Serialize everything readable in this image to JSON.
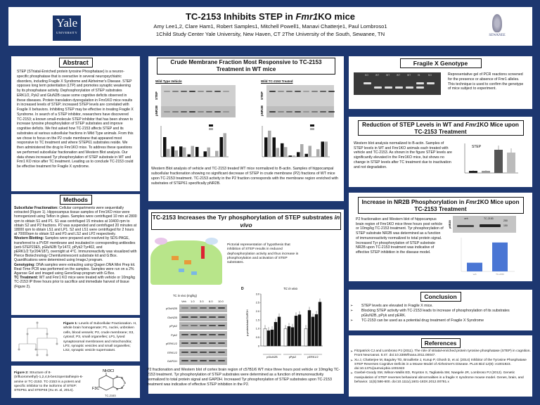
{
  "header": {
    "title_pre": "TC-2153 Inhibits STEP in ",
    "title_italic": "Fmr1",
    "title_post": "KO mice",
    "authors": "Amy Lee1,2, Clare Ham1, Robert Samples1, Mitchell Powell1, Manavi Chatterje1, Paul Lombroso1",
    "affiliations": "1Child Study Center Yale University, New Haven, CT  2The University of the South, Sewanee, TN",
    "logo_left": {
      "line1": "Yale",
      "line2": "UNIVERSITY"
    },
    "logo_right": {
      "text": "SEWANEE"
    }
  },
  "abstract": {
    "title": "Abstract",
    "body": "STEP (STriatal-Enriched protein tyrosine Phosphatase) is a neuron-specific phosphatase that is overactive in several neuropsychiatric disorders, including Fragile X Syndrome and Alzheimer's Disease. STEP opposes long term potentiation (LTP) and promotes synaptic weakening by its phosphatase activity. Dephosphorylation of STEP substrates ERK1/2, Pyk2 and GluN2B cause some cognitive deficits observed in these diseases. Protein translation dysregulation in Fmr1KO mice results in increased levels of STEP; increased STEP levels are correlated with Fragile X behaviors. Inhibiting STEP may be effective in treating Fragile X Syndrome. In search of a STEP inhibitor, researchers have discovered TC-2153; a known small-molecule STEP inhibitor that has been shown to increase tyrosine phosphorylation of STEP substrates and improve cognitive deficits. We first asked how TC-2153 affects STEP and its substrates at various subcellular fractions in Wild Type animals. From this we chose to focus on the P2 crude membrane that appeared most responsive to TC treatment and where STEP61 substrates reside. We then administered the drug to Fmr1KO mice. To address these questions we performed subcellular fractionation and Western Blot analysis. Our data shows increased Tyr phosphorylation of STEP substrate in WT and Fmr1 KO mice after TC treatment. Leading us to conclude TC-2153 could be  effective treatment for Fragile X syndrome."
  },
  "methods": {
    "title": "Methods",
    "items": [
      {
        "label": "Subcellular Fractionation:",
        "text": " Cellular compartments were sequentially extracted (Figure 1). Hippocampus tissue samples of Fmr1KO mice were homogenized using Teflon in glass. Samples were centrifuged 10 min at 2800 rpm to obtain S1 and P1. S1 was centrifuged 15 minutes at 10400 rpm to obtain S2 and P2 fractions. P2 was suspended and centrifuged 20 minutes at 18000 rpm to obtain LS1 and LP1. S2 and LS1 were centrifuged for 2 hours at 70000rpm to obtain S3 and P3 and LS2 and LP2 respectively."
      },
      {
        "label": "Western Blotting:",
        "text": " Samples were prepared and resolved by SDS-PAGE, transferred to a PVDF membrane and incubated in corresponding antibodies (anti-STEP23E5, pGluN2B:Tyr1472, pPyk2:Tyr402, and pERK1/2:Tyr204/187), overnight at 4°C. Immunoreactivity was visualized with Pierce Biotechnology Chemiluminescent substrate kit and G:Box. Quantifications were determined using ImageJ program."
      },
      {
        "label": "Genotyping:",
        "text": " DNA samples were extracting using Qiagen DNA Mini Prep kit. Real-Time PCR was performed on the samples. Samples were run on a 2% Agarose Gel and imaged using GeneSnap program with G:Box."
      },
      {
        "label": "TC Treatment:",
        "text": " WT and Fmr1 KO mice were treated with vehicle or 10mg/kg TC-2153 IP three hours prior to sacrifice and immediate harvest of tissue (Figure 2)."
      }
    ]
  },
  "figure1": {
    "label": "Figure 1:",
    "caption": " Levels of Subcellular Fractionation. H, whole brain homogenate; P1, nuclei, unbroken cells, blood vessels; P2, crude membrane; S3, cytosol; P3, small organelles; LP1, lysed synaptosomal membranes and mitochondria; LP2, synaptic vesicles and small organelles; LS2, synaptic vesicle supernatant."
  },
  "figure2": {
    "label": "Figure 2:",
    "caption": " Structure of 8-(trifluoromethyl)-1,2,4,5-benzopentathiepin-6-amine or TC-2153. TC-2153 is a potent and specific inhibitor to the isoforms of STEP: STEP61 and STEP46 (Xu et. al, 2014).",
    "structure_amine": "NH3Cl",
    "structure_cf3": "F3C",
    "structure_label": "TC-2153"
  },
  "crude": {
    "title": "Crude Membrane Fraction Most Responsive to TC-2153 Treatment in WT mice",
    "blot_left_title": "Wild Type Vehicle",
    "blot_right_title": "Wild TC-2153 Treated",
    "row_labels": [
      "STEP",
      "pNR2B"
    ],
    "chart_left": {
      "vehicle": [
        2.0,
        1.05,
        1.05,
        0.25,
        1.0,
        0.55,
        0.0,
        2.0
      ],
      "tc": [
        0.8,
        0.65,
        0.95,
        1.1,
        0.0,
        0.95,
        0.6,
        2.4
      ]
    },
    "chart_right": {
      "vehicle": [
        2.3,
        2.3,
        1.6,
        0.15,
        0.55,
        0.35,
        0.0,
        1.8
      ],
      "tc": [
        3.1,
        1.05,
        1.15,
        0.15,
        1.5,
        1.3,
        0.9,
        1.8
      ]
    },
    "caption": "Western Blot analysis of vehicle and TC-2153 treated WT mice normalized to B-actin. Samples of hippocampal subcellular fractionation showing no significant decrease of STEP in crude membrane (P2) fractions of WT mice upon TC-2153 treatment. TC-2153 activity in the P2 fraction corresponds with the membrane region enriched with substrates of STEP61 specifically pNR2B."
  },
  "tyr": {
    "title_pre": "TC-2153 Increases the Tyr phosphorylation of STEP substrates ",
    "title_italic": "in vivo",
    "pictorial_caption": "Pictorial representation of hypothesis that inhibition of STEP results in reduced dephosphorylation activity and thus increase in phosphorylation and activation of STEP substrates.",
    "blot_header": "TC in vivo (mg/kg)",
    "doses": [
      "Veh",
      "1.0",
      "3.0",
      "6.0",
      "10.0"
    ],
    "blot_rows": [
      "pGluN2B",
      "GluN2B",
      "pPyk2",
      "Pyk2",
      "pERK1/2",
      "ERK1/2",
      "GAPDH"
    ],
    "chart": {
      "panel": "D",
      "title": "TC in vivo",
      "ylabel": "p-protein/total/GAPDH",
      "yticks": [
        "0",
        "0.5",
        "1.0",
        "1.5",
        "2.0",
        "2.5",
        "3.0"
      ],
      "groups": [
        "pGluN2B",
        "pPyk2",
        "pERK1/2"
      ],
      "values": [
        [
          1.0,
          0.88,
          0.93,
          1.37,
          1.67
        ],
        [
          1.0,
          1.12,
          1.07,
          1.73,
          1.8
        ],
        [
          1.0,
          2.05,
          1.67,
          1.82,
          2.53
        ]
      ]
    },
    "caption": "P2 fractionation and Western blot of cortex brain region of c57B1/6 WT mice three hours post vehicle or 10mg/kg TC-2153 treatment. Tyr phosphorylation of STEP substrates  were determined as a function of immunoreactivity normalized to total protein signal and GAPDH. Increased Tyr phosphorylation of STEP substrates upon TC-2153 treatment was indicative of effective STEP inhibition in the P2."
  },
  "genotype": {
    "title": "Fragile X Genotype",
    "lanes": [
      "KO",
      "WT",
      "WT",
      "WT",
      "WT",
      "Ht",
      "KO"
    ],
    "caption": "Representative gel of PCR reactions screened for the presence or absence of Fmr1 alleles. This technique is used to confirm the genotype of mice subject to experiment."
  },
  "reduction": {
    "title_pre": "Reduction of STEP Levels in WT and ",
    "title_italic": "Fmr1",
    "title_post": "KO Mice upon TC-2153 Treatment",
    "body": "Western blot analysis normalized to B-actin. Samples of STEP levels in WT and Fmr1KO animals each treated with vehicle and TC-2153. As shown in the figure STEP levels are significantly elevated in the Fmr1KO mice, but shows no change in STEP levels after TC treatment due to inactivation and not degradation.",
    "chart_title": "STEP",
    "values": [
      0.15,
      0.15,
      1.65,
      1.45
    ],
    "colors": [
      "#222222",
      "#999999",
      "#555555",
      "#bbbbbb"
    ]
  },
  "nr2b": {
    "title_pre": "Increase in NR2B Phosphorylation in ",
    "title_italic": "Fmr1",
    "title_post": "KO Mice upon TC-2153 Treatment",
    "body": "P2 fractionation and Western blot of hippocampus brain region of Fmr1KO mice three hours post vehicle or 10mg/kg TC-2153 treatment. Tyr phosphorylation of STEP substrate NR2B was determined as a function of immunoreactivity normalized to total protein signal. Increased Tyr phosphorylation of STEP substrate NR2B upon TC-2153 treatment was indicative of effective STEP inhibition in the disease model.",
    "blot_label": "pNR2B",
    "blot_lanes": [
      "veh",
      "TC-2153"
    ],
    "markers": [
      "250",
      "150"
    ],
    "values": [
      0.9,
      3.0
    ],
    "bar_color": "#4a76d4"
  },
  "conclusion": {
    "title": "Conclusion",
    "items": [
      "STEP levels are elevated in Fragile X mice.",
      "Blocking STEP activity with TC-2153 leads to increase of phosphorylation of its substrates pGluN2B, pPyk and pERK.",
      "TC-2153 can be used as a potential drug treatment of Fragile X Syndrome"
    ]
  },
  "references": {
    "title": "References",
    "items": [
      "Fitzpatrick CJ and Lombroso PJ (2011). The role of striatal-enriched protein tyrosine phosphatase (STEP) in cognition. Front Neuroanat. 5:47. doi:10.3389/fnana.2011.00047.",
      "Xu J, Chatterjee M, Baguley TD, Brouillette J, Kurup P, Ghosh D, et al. (2014) Inhibitor of the Tyrosine Phosphatase STEP Reverses Cognitive Deficits in a Mouse Model of Alzheimer's Disease. PLoS Biol 12(8): e1001923. doi:10.1371/journal.pbio.1001923",
      "Goebel-Goody SM, Wilson-Wallis ED, Royston S, Tagliatela SM, Naegele JR, Lombroso PJ (2012). Genetic manipulation of STEP reverses behavioral abnormalities in a fragile X syndrome mouse model. Genes, brain, and behavior. 11(5):586-600. doi:10.1111/j.1601-183X.2012.00781.x"
    ]
  }
}
